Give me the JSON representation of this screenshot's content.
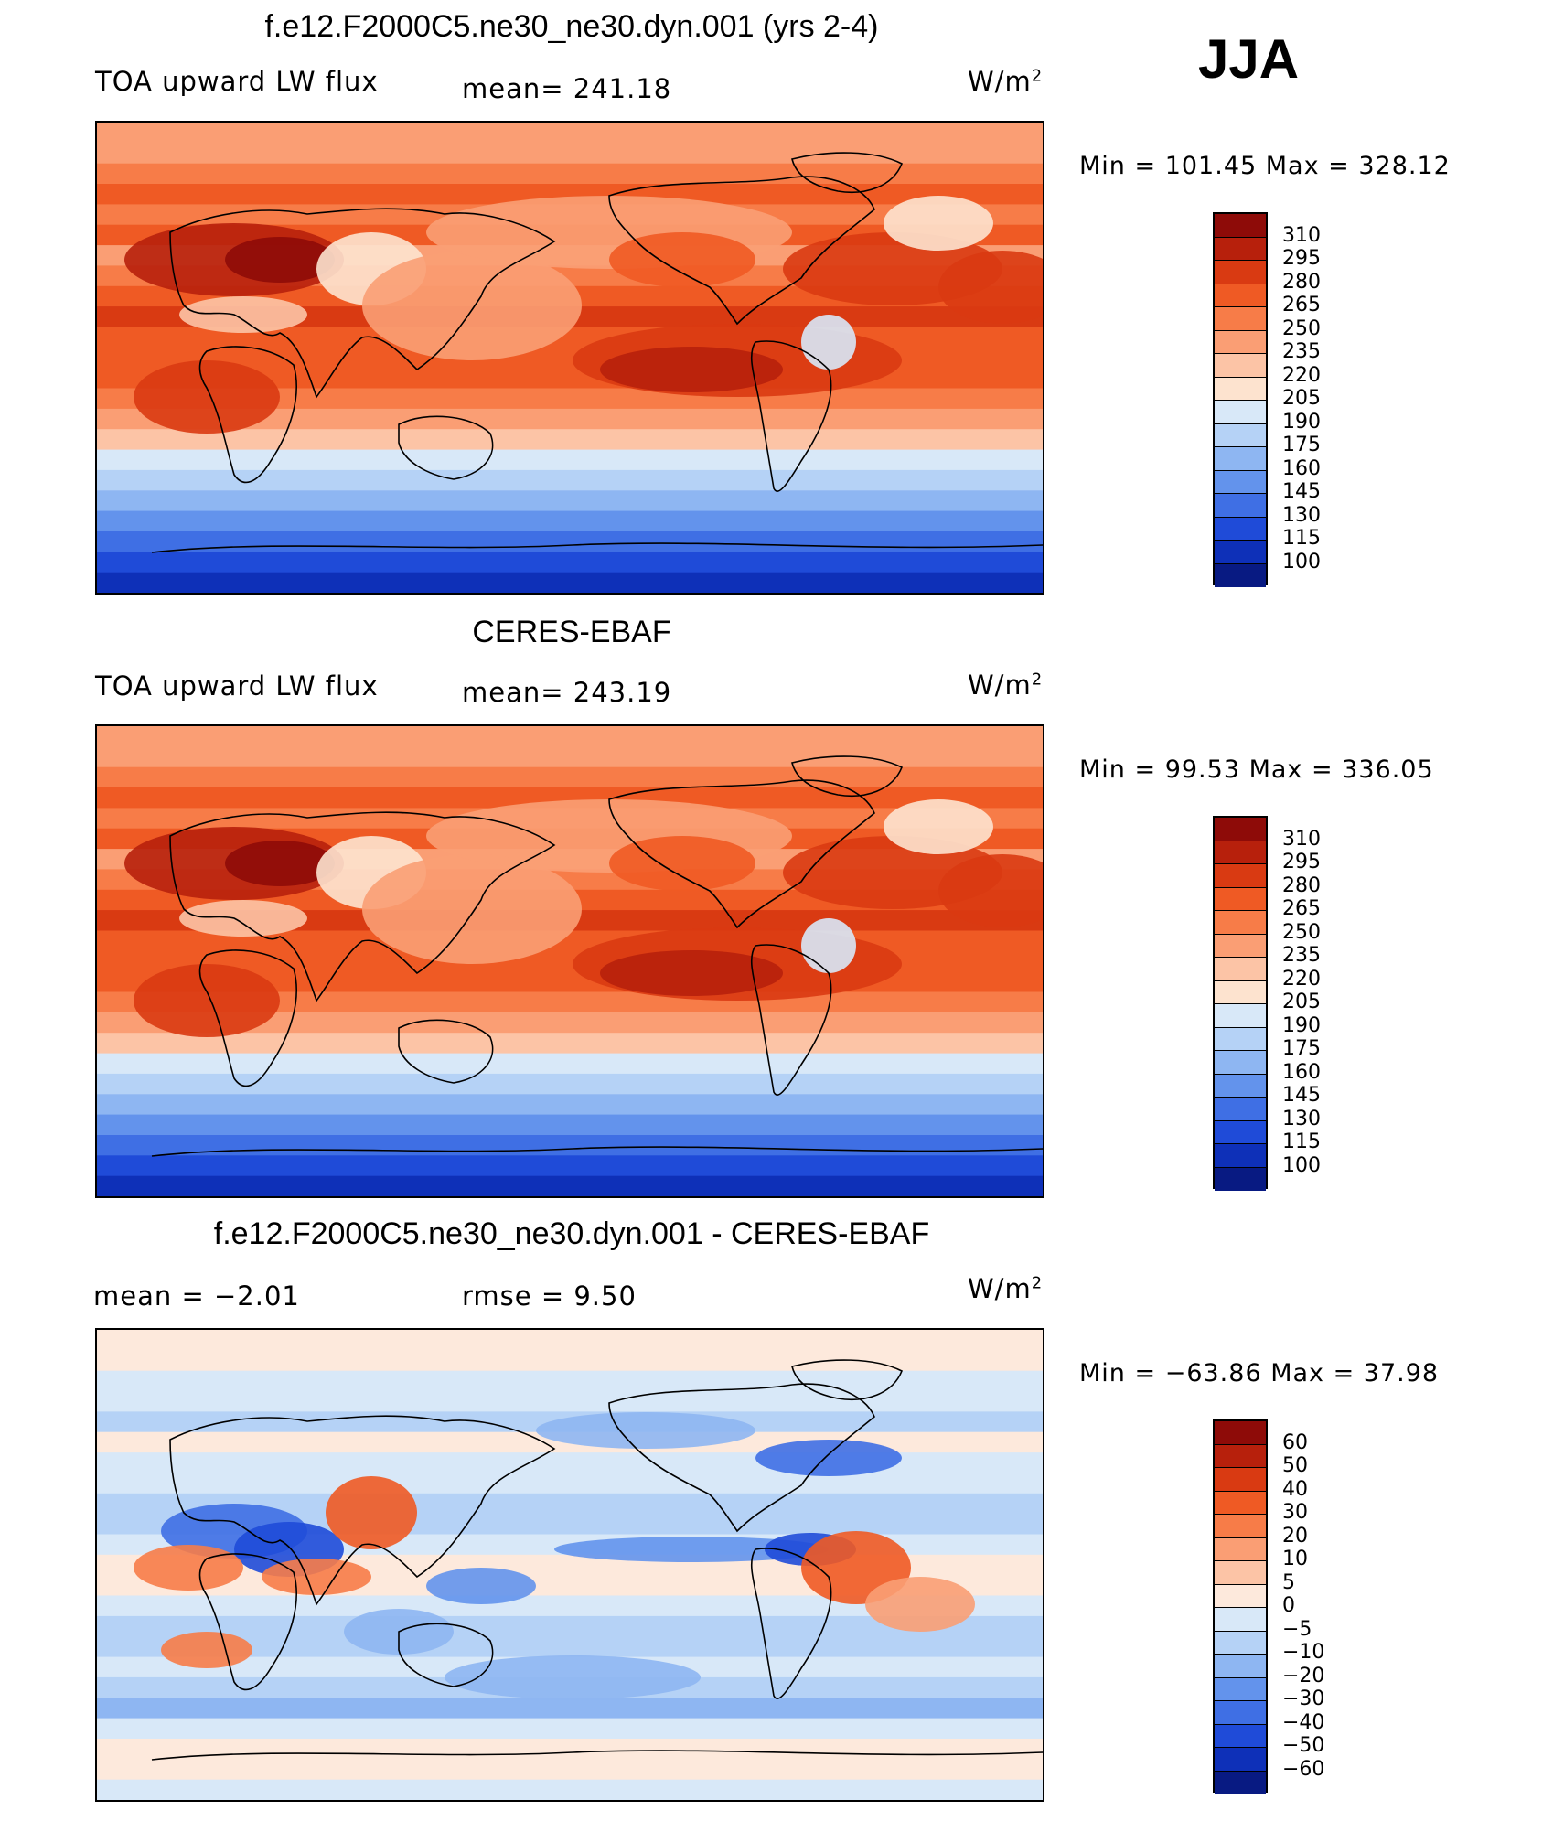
{
  "season": "JJA",
  "units_base": "W/m",
  "units_exp": "2",
  "panels": [
    {
      "title": "f.e12.F2000C5.ne30_ne30.dyn.001 (yrs 2-4)",
      "left_label": "TOA upward LW flux",
      "mid_label": "mean=  241.18",
      "minmax": "Min  =  101.45  Max  =  328.12",
      "colorbar": {
        "labels": [
          "310",
          "295",
          "280",
          "265",
          "250",
          "235",
          "220",
          "205",
          "190",
          "175",
          "160",
          "145",
          "130",
          "115",
          "100"
        ],
        "colors": [
          "#8e0b08",
          "#b7200c",
          "#d93a12",
          "#ef5a24",
          "#f77c48",
          "#fa9e74",
          "#fcc4a6",
          "#fde3cf",
          "#d8e8f8",
          "#b5d2f6",
          "#8eb6f2",
          "#6393ec",
          "#3f6fe4",
          "#1f4bd8",
          "#0e30b8",
          "#081a82"
        ]
      },
      "map": {
        "data_field": "model",
        "season": "JJA"
      }
    },
    {
      "title": "CERES-EBAF",
      "left_label": "TOA upward LW flux",
      "mid_label": "mean=  243.19",
      "minmax": "Min  =    99.53  Max  =  336.05",
      "colorbar": {
        "labels": [
          "310",
          "295",
          "280",
          "265",
          "250",
          "235",
          "220",
          "205",
          "190",
          "175",
          "160",
          "145",
          "130",
          "115",
          "100"
        ],
        "colors": [
          "#8e0b08",
          "#b7200c",
          "#d93a12",
          "#ef5a24",
          "#f77c48",
          "#fa9e74",
          "#fcc4a6",
          "#fde3cf",
          "#d8e8f8",
          "#b5d2f6",
          "#8eb6f2",
          "#6393ec",
          "#3f6fe4",
          "#1f4bd8",
          "#0e30b8",
          "#081a82"
        ]
      },
      "map": {
        "data_field": "observations",
        "season": "JJA"
      }
    },
    {
      "title": "f.e12.F2000C5.ne30_ne30.dyn.001 - CERES-EBAF",
      "left_label": "mean  =     −2.01",
      "mid_label": "rmse  =     9.50",
      "minmax": "Min  =  −63.86  Max  =    37.98",
      "colorbar": {
        "labels": [
          "60",
          "50",
          "40",
          "30",
          "20",
          "10",
          "5",
          "0",
          "−5",
          "−10",
          "−20",
          "−30",
          "−40",
          "−50",
          "−60"
        ],
        "colors": [
          "#8e0b08",
          "#b7200c",
          "#d93a12",
          "#ef5a24",
          "#f77c48",
          "#fa9e74",
          "#fcc4a6",
          "#fde9dc",
          "#d8e8f8",
          "#b5d2f6",
          "#8eb6f2",
          "#6393ec",
          "#3f6fe4",
          "#1f4bd8",
          "#0e30b8",
          "#081a82"
        ]
      },
      "map": {
        "data_field": "difference",
        "season": "JJA"
      }
    }
  ]
}
